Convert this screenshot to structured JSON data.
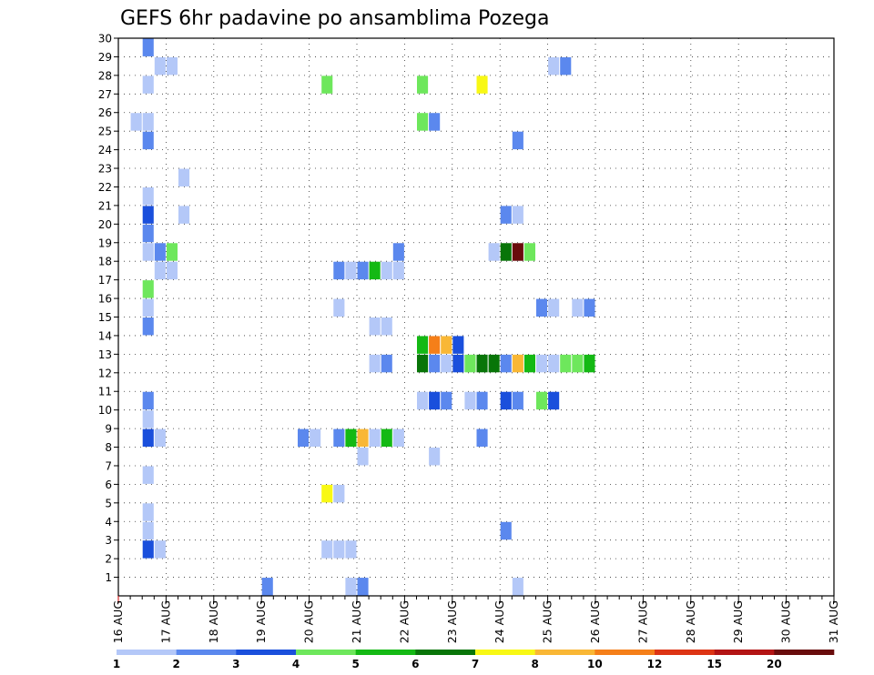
{
  "chart_data": {
    "type": "heatmap",
    "title": "GEFS 6hr padavine po ansamblima Pozega",
    "x_categories": [
      "16 AUG",
      "17 AUG",
      "18 AUG",
      "19 AUG",
      "20 AUG",
      "21 AUG",
      "22 AUG",
      "23 AUG",
      "24 AUG",
      "25 AUG",
      "26 AUG",
      "27 AUG",
      "28 AUG",
      "29 AUG",
      "30 AUG",
      "31 AUG"
    ],
    "xlim": [
      0,
      60
    ],
    "y_ticks": [
      1,
      2,
      3,
      4,
      5,
      6,
      7,
      8,
      9,
      10,
      11,
      12,
      13,
      14,
      15,
      16,
      17,
      18,
      19,
      20,
      21,
      22,
      23,
      24,
      25,
      26,
      27,
      28,
      29,
      30
    ],
    "ylim": [
      0,
      30
    ],
    "grid": true,
    "legend": {
      "placement": "bottom",
      "thresholds": [
        "1",
        "2",
        "3",
        "4",
        "5",
        "6",
        "7",
        "8",
        "10",
        "12",
        "15",
        "20"
      ],
      "colors": [
        "#b4c8f8",
        "#5b88ee",
        "#1a4fdc",
        "#6ee75c",
        "#14b914",
        "#087508",
        "#f8f814",
        "#f9b735",
        "#f57f19",
        "#dd3414",
        "#b31414",
        "#690c0c"
      ]
    },
    "cells": [
      [
        2,
        29,
        1
      ],
      [
        2,
        27,
        0
      ],
      [
        2,
        25,
        0
      ],
      [
        2,
        24,
        1
      ],
      [
        2,
        21,
        0
      ],
      [
        2,
        20,
        2
      ],
      [
        2,
        19,
        1
      ],
      [
        2,
        18,
        0
      ],
      [
        2,
        16,
        3
      ],
      [
        2,
        15,
        0
      ],
      [
        2,
        14,
        1
      ],
      [
        2,
        10,
        1
      ],
      [
        2,
        9,
        0
      ],
      [
        2,
        8,
        2
      ],
      [
        2,
        6,
        0
      ],
      [
        2,
        4,
        0
      ],
      [
        2,
        3,
        0
      ],
      [
        2,
        2,
        2
      ],
      [
        1,
        25,
        0
      ],
      [
        3,
        28,
        0
      ],
      [
        4,
        28,
        0
      ],
      [
        3,
        18,
        1
      ],
      [
        4,
        18,
        3
      ],
      [
        3,
        17,
        0
      ],
      [
        4,
        17,
        0
      ],
      [
        3,
        8,
        0
      ],
      [
        3,
        2,
        0
      ],
      [
        5,
        22,
        0
      ],
      [
        5,
        20,
        0
      ],
      [
        12,
        0,
        1
      ],
      [
        15,
        8,
        1
      ],
      [
        16,
        8,
        0
      ],
      [
        17,
        27,
        3
      ],
      [
        17,
        5,
        6
      ],
      [
        18,
        5,
        0
      ],
      [
        17,
        2,
        0
      ],
      [
        18,
        2,
        0
      ],
      [
        19,
        2,
        0
      ],
      [
        18,
        17,
        1
      ],
      [
        19,
        17,
        0
      ],
      [
        20,
        17,
        1
      ],
      [
        21,
        17,
        4
      ],
      [
        22,
        17,
        0
      ],
      [
        23,
        17,
        0
      ],
      [
        23,
        18,
        1
      ],
      [
        18,
        15,
        0
      ],
      [
        18,
        8,
        1
      ],
      [
        19,
        8,
        4
      ],
      [
        20,
        8,
        7
      ],
      [
        21,
        8,
        0
      ],
      [
        22,
        8,
        4
      ],
      [
        23,
        8,
        0
      ],
      [
        20,
        7,
        0
      ],
      [
        19,
        0,
        0
      ],
      [
        20,
        0,
        1
      ],
      [
        21,
        12,
        0
      ],
      [
        22,
        12,
        1
      ],
      [
        21,
        14,
        0
      ],
      [
        22,
        14,
        0
      ],
      [
        25,
        27,
        3
      ],
      [
        25,
        25,
        3
      ],
      [
        26,
        25,
        1
      ],
      [
        25,
        13,
        4
      ],
      [
        26,
        13,
        8
      ],
      [
        27,
        13,
        7
      ],
      [
        28,
        13,
        2
      ],
      [
        25,
        12,
        5
      ],
      [
        26,
        12,
        1
      ],
      [
        27,
        12,
        0
      ],
      [
        28,
        12,
        2
      ],
      [
        29,
        12,
        3
      ],
      [
        30,
        12,
        5
      ],
      [
        31,
        12,
        5
      ],
      [
        32,
        12,
        1
      ],
      [
        33,
        12,
        7
      ],
      [
        34,
        12,
        4
      ],
      [
        35,
        12,
        0
      ],
      [
        36,
        12,
        0
      ],
      [
        37,
        12,
        3
      ],
      [
        38,
        12,
        3
      ],
      [
        39,
        12,
        4
      ],
      [
        25,
        10,
        0
      ],
      [
        26,
        10,
        2
      ],
      [
        27,
        10,
        1
      ],
      [
        29,
        10,
        0
      ],
      [
        30,
        10,
        1
      ],
      [
        32,
        10,
        2
      ],
      [
        33,
        10,
        1
      ],
      [
        35,
        10,
        3
      ],
      [
        36,
        10,
        2
      ],
      [
        26,
        7,
        0
      ],
      [
        30,
        8,
        1
      ],
      [
        30,
        27,
        6
      ],
      [
        31,
        18,
        0
      ],
      [
        32,
        18,
        5
      ],
      [
        33,
        18,
        11
      ],
      [
        34,
        18,
        3
      ],
      [
        32,
        20,
        1
      ],
      [
        33,
        20,
        0
      ],
      [
        33,
        24,
        1
      ],
      [
        32,
        3,
        1
      ],
      [
        33,
        0,
        0
      ],
      [
        35,
        15,
        1
      ],
      [
        36,
        15,
        0
      ],
      [
        38,
        15,
        0
      ],
      [
        39,
        15,
        1
      ],
      [
        36,
        28,
        0
      ],
      [
        37,
        28,
        1
      ]
    ]
  }
}
